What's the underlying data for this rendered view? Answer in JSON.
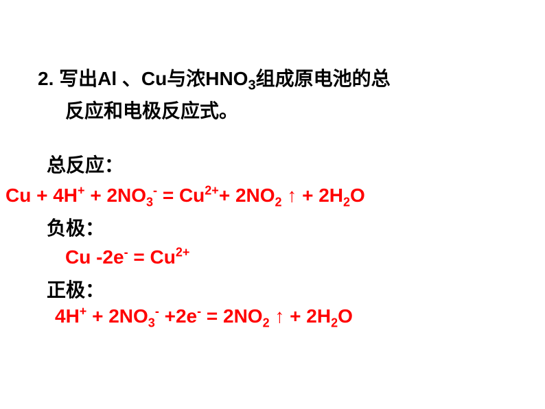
{
  "question": {
    "number": "2.",
    "line1_prefix": "2. 写出Al  、Cu与浓HNO",
    "line1_sub": "3",
    "line1_suffix": "组成原电池的总",
    "line2": "反应和电极反应式。"
  },
  "labels": {
    "total": "总反应：",
    "negative": "负极：",
    "positive": "正极："
  },
  "equations": {
    "total": {
      "parts": [
        "Cu + 4H",
        "+",
        " + 2NO",
        "3",
        "-",
        " = Cu",
        "2+",
        "+ 2NO",
        "2",
        " ↑ + 2H",
        "2",
        "O"
      ]
    },
    "negative": {
      "parts": [
        "Cu -2e",
        "-",
        " = Cu",
        "2+"
      ]
    },
    "positive": {
      "parts": [
        "4H",
        "+",
        " + 2NO",
        "3",
        "-",
        " +2e",
        "-",
        " = 2NO",
        "2",
        " ↑ + 2H",
        "2",
        "O"
      ]
    }
  },
  "colors": {
    "text_black": "#000000",
    "text_red": "#ff0000",
    "background": "#ffffff"
  },
  "typography": {
    "main_fontsize": 28,
    "sub_fontsize": 18,
    "font_weight": "bold",
    "font_family_cn": "Microsoft YaHei, SimHei",
    "font_family_en": "Arial"
  }
}
